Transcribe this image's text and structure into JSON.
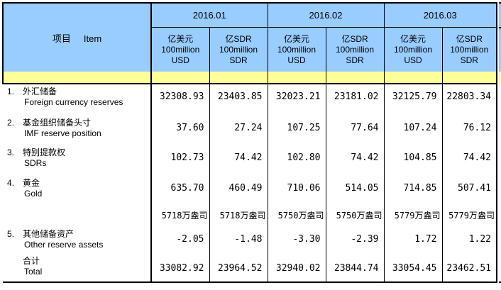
{
  "table": {
    "item_header": {
      "zh": "项目",
      "en": "Item"
    },
    "periods": [
      "2016.01",
      "2016.02",
      "2016.03"
    ],
    "unit_headers": {
      "usd": {
        "line1": "亿美元",
        "line2": "100million",
        "line3": "USD"
      },
      "sdr": {
        "line1": "亿SDR",
        "line2": "100million",
        "line3": "SDR"
      }
    },
    "rows": [
      {
        "no": "1.",
        "label_zh": "外汇储备",
        "label_en": "Foreign currency reserves",
        "kind": "data",
        "values": [
          "32308.93",
          "23403.85",
          "32023.21",
          "23181.02",
          "32125.79",
          "22803.34"
        ]
      },
      {
        "no": "2.",
        "label_zh": "基金组织储备头寸",
        "label_en": "IMF reserve position",
        "kind": "data",
        "values": [
          "37.60",
          "27.24",
          "107.25",
          "77.64",
          "107.24",
          "76.12"
        ]
      },
      {
        "no": "3.",
        "label_zh": "特别提款权",
        "label_en": "SDRs",
        "kind": "data",
        "values": [
          "102.73",
          "74.42",
          "102.80",
          "74.42",
          "104.85",
          "74.42"
        ]
      },
      {
        "no": "4.",
        "label_zh": "黄金",
        "label_en": "Gold",
        "kind": "data",
        "values": [
          "635.70",
          "460.49",
          "710.06",
          "514.05",
          "714.85",
          "507.41"
        ]
      },
      {
        "no": "",
        "label_zh": "",
        "label_en": "",
        "kind": "ounces",
        "values": [
          "5718万盎司",
          "5718万盎司",
          "5750万盎司",
          "5750万盎司",
          "5779万盎司",
          "5779万盎司"
        ]
      },
      {
        "no": "5.",
        "label_zh": "其他储备资产",
        "label_en": "Other reserve assets",
        "kind": "data",
        "values": [
          "-2.05",
          "-1.48",
          "-3.30",
          "-2.39",
          "1.72",
          "1.22"
        ]
      },
      {
        "no": "",
        "label_zh": "合计",
        "label_en": "Total",
        "kind": "total",
        "values": [
          "33082.92",
          "23964.52",
          "32940.02",
          "23844.74",
          "33054.45",
          "23462.51"
        ]
      }
    ],
    "colors": {
      "header_blue": "#99CCFF",
      "strip_yellow": "#FFFF99",
      "border": "#000000",
      "background": "#FFFFFF"
    }
  }
}
